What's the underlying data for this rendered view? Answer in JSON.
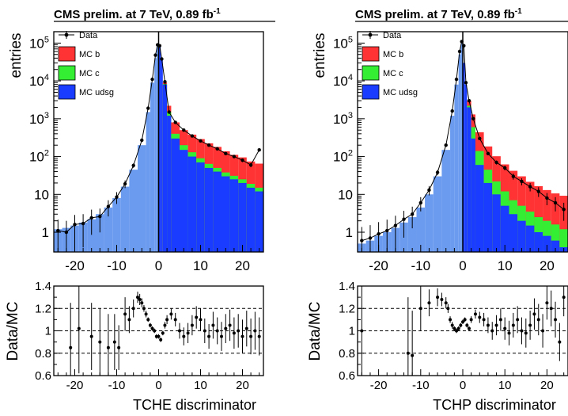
{
  "chart_data": [
    {
      "type": "histogram",
      "title": "CMS prelim. at 7 TeV, 0.89 fb",
      "title_sup": "-1",
      "xlabel": "TCHE discriminator",
      "ylabel": "entries",
      "ratio_ylabel": "Data/MC",
      "xlim": [
        -25,
        25
      ],
      "ylim_log": [
        0.3,
        200000
      ],
      "ratio_ylim": [
        0.6,
        1.4
      ],
      "x_ticks": [
        "-20",
        "-10",
        "0",
        "10",
        "20"
      ],
      "y_ticks": [
        {
          "base": "1",
          "exp": ""
        },
        {
          "base": "10",
          "exp": ""
        },
        {
          "base": "10",
          "exp": "2"
        },
        {
          "base": "10",
          "exp": "3"
        },
        {
          "base": "10",
          "exp": "4"
        },
        {
          "base": "10",
          "exp": "5"
        }
      ],
      "ratio_ticks": [
        "0.6",
        "0.8",
        "1",
        "1.2",
        "1.4"
      ],
      "legend": [
        {
          "label": "Data",
          "kind": "marker"
        },
        {
          "label": "MC b",
          "kind": "fill",
          "color": "#ff3333"
        },
        {
          "label": "MC c",
          "kind": "fill",
          "color": "#33ee33"
        },
        {
          "label": "MC udsg",
          "kind": "fill",
          "color": "#1a3cff"
        }
      ],
      "colors": {
        "negative_udsg": "#6b9bef",
        "udsg": "#1a3cff",
        "c": "#33ee33",
        "b": "#ff3333"
      },
      "bin_x": [
        -25,
        -23,
        -21,
        -19,
        -17,
        -15,
        -13,
        -11,
        -9,
        -7,
        -5,
        -3,
        -2,
        -1,
        -0.5,
        0,
        0.5,
        1,
        2,
        3,
        5,
        7,
        9,
        11,
        13,
        15,
        17,
        19,
        21,
        23,
        25
      ],
      "udsg": [
        1.2,
        1.3,
        1.5,
        1.8,
        2.2,
        3,
        4.5,
        8,
        16,
        45,
        200,
        1500,
        9000,
        40000,
        80000,
        80000,
        40000,
        8000,
        1200,
        300,
        150,
        100,
        70,
        50,
        40,
        30,
        25,
        20,
        15,
        12,
        10
      ],
      "c": [
        0,
        0,
        0,
        0,
        0,
        0,
        0,
        0,
        0,
        0,
        0,
        0,
        0,
        0,
        0,
        0,
        0,
        300,
        300,
        100,
        50,
        30,
        20,
        14,
        10,
        8,
        6,
        5,
        4,
        3,
        3
      ],
      "b": [
        0,
        0,
        0,
        0,
        0,
        0,
        0,
        0,
        0,
        0,
        0,
        0,
        0,
        0,
        0,
        0,
        0,
        700,
        700,
        400,
        300,
        250,
        200,
        160,
        130,
        100,
        80,
        70,
        55,
        50,
        140
      ],
      "data_x": [
        -24,
        -22,
        -20,
        -18,
        -16,
        -14,
        -12,
        -10,
        -8,
        -6,
        -4,
        -2.5,
        -1.5,
        -0.75,
        -0.25,
        0.25,
        0.75,
        1.5,
        2.5,
        4,
        6,
        8,
        10,
        12,
        14,
        16,
        18,
        20,
        22,
        24
      ],
      "data_y": [
        1.1,
        1.0,
        1.6,
        1.7,
        2.4,
        2.6,
        4.8,
        8.5,
        19,
        58,
        270,
        1900,
        11000,
        48000,
        90000,
        85000,
        38000,
        9500,
        1500,
        800,
        500,
        350,
        260,
        200,
        160,
        120,
        100,
        80,
        60,
        150
      ],
      "ratio_x": [
        -21,
        -19,
        -16,
        -14,
        -12,
        -10.5,
        -9.5,
        -8,
        -7,
        -6,
        -5,
        -4.5,
        -4,
        -3.5,
        -3,
        -2.5,
        -2,
        -1.5,
        -1,
        -0.5,
        0,
        0.5,
        1,
        1.5,
        2,
        3,
        4,
        5,
        6,
        7,
        8,
        9,
        10,
        11,
        12,
        13,
        14,
        15,
        16,
        17,
        18,
        19,
        20,
        21,
        22,
        23,
        24
      ],
      "ratio_y": [
        0.85,
        1.02,
        0.95,
        0.9,
        0.85,
        0.9,
        0.85,
        1.15,
        1.1,
        1.2,
        1.3,
        1.28,
        1.25,
        1.2,
        1.15,
        1.1,
        1.05,
        1.02,
        1.0,
        0.95,
        0.95,
        0.92,
        0.98,
        1.05,
        1.1,
        1.15,
        1.1,
        1.0,
        0.95,
        0.98,
        1.05,
        1.12,
        1.1,
        1.0,
        0.95,
        1.05,
        1.0,
        0.95,
        1.02,
        1.05,
        0.98,
        1.0,
        0.95,
        1.02,
        0.95,
        1.0,
        0.95
      ],
      "ratio_err": [
        0.4,
        0.4,
        0.3,
        0.3,
        0.3,
        0.25,
        0.2,
        0.15,
        0.12,
        0.08,
        0.05,
        0.05,
        0.04,
        0.03,
        0.03,
        0.02,
        0.02,
        0.02,
        0.02,
        0.02,
        0.02,
        0.02,
        0.02,
        0.03,
        0.04,
        0.05,
        0.06,
        0.07,
        0.08,
        0.09,
        0.09,
        0.1,
        0.1,
        0.11,
        0.11,
        0.12,
        0.12,
        0.13,
        0.13,
        0.14,
        0.14,
        0.15,
        0.15,
        0.16,
        0.16,
        0.17,
        0.17
      ]
    },
    {
      "type": "histogram",
      "title": "CMS prelim. at 7 TeV, 0.89 fb",
      "title_sup": "-1",
      "xlabel": "TCHP discriminator",
      "ylabel": "entries",
      "ratio_ylabel": "Data/MC",
      "xlim": [
        -25,
        25
      ],
      "ylim_log": [
        0.3,
        200000
      ],
      "ratio_ylim": [
        0.6,
        1.4
      ],
      "x_ticks": [
        "-20",
        "-10",
        "0",
        "10",
        "20"
      ],
      "y_ticks": [
        {
          "base": "1",
          "exp": ""
        },
        {
          "base": "10",
          "exp": ""
        },
        {
          "base": "10",
          "exp": "2"
        },
        {
          "base": "10",
          "exp": "3"
        },
        {
          "base": "10",
          "exp": "4"
        },
        {
          "base": "10",
          "exp": "5"
        }
      ],
      "ratio_ticks": [
        "0.6",
        "0.8",
        "1",
        "1.2",
        "1.4"
      ],
      "legend": [
        {
          "label": "Data",
          "kind": "marker"
        },
        {
          "label": "MC b",
          "kind": "fill",
          "color": "#ff3333"
        },
        {
          "label": "MC c",
          "kind": "fill",
          "color": "#33ee33"
        },
        {
          "label": "MC udsg",
          "kind": "fill",
          "color": "#1a3cff"
        }
      ],
      "colors": {
        "negative_udsg": "#6b9bef",
        "udsg": "#1a3cff",
        "c": "#33ee33",
        "b": "#ff3333"
      },
      "bin_x": [
        -25,
        -23,
        -21,
        -19,
        -17,
        -15,
        -13,
        -11,
        -9,
        -7,
        -5,
        -3,
        -2,
        -1,
        -0.5,
        0,
        0.5,
        1,
        2,
        3,
        5,
        7,
        9,
        11,
        13,
        15,
        17,
        19,
        21,
        23,
        25
      ],
      "udsg": [
        0.5,
        0.6,
        0.8,
        1.0,
        1.3,
        1.8,
        2.5,
        4.5,
        10,
        30,
        150,
        1200,
        8000,
        50000,
        100000,
        30000,
        8000,
        2000,
        300,
        60,
        20,
        10,
        5,
        3,
        2,
        1.5,
        1,
        0.8,
        0.6,
        0.4,
        0.3
      ],
      "c": [
        0,
        0,
        0,
        0,
        0,
        0,
        0,
        0,
        0,
        0,
        0,
        0,
        0,
        0,
        0,
        0,
        0,
        200,
        300,
        80,
        25,
        12,
        7,
        4,
        3,
        2,
        1.5,
        1.2,
        1.0,
        0.8,
        0.6
      ],
      "b": [
        0,
        0,
        0,
        0,
        0,
        0,
        0,
        0,
        0,
        0,
        0,
        0,
        0,
        0,
        0,
        0,
        0,
        800,
        700,
        300,
        140,
        80,
        50,
        35,
        25,
        18,
        14,
        11,
        9,
        8,
        20
      ],
      "data_x": [
        -24,
        -22,
        -20,
        -18,
        -16,
        -14,
        -12,
        -10,
        -8,
        -6,
        -4,
        -2.5,
        -1.5,
        -0.75,
        -0.25,
        0.25,
        0.75,
        1.5,
        2.5,
        4,
        6,
        8,
        10,
        12,
        14,
        16,
        18,
        20,
        22,
        24
      ],
      "data_y": [
        0.6,
        0.7,
        0.9,
        1.1,
        1.5,
        2.2,
        3.0,
        6.0,
        13,
        38,
        200,
        1600,
        11000,
        60000,
        110000,
        85000,
        9000,
        3000,
        1000,
        300,
        120,
        70,
        50,
        30,
        22,
        16,
        12,
        8,
        6,
        4
      ],
      "ratio_x": [
        -24,
        -13,
        -12,
        -10,
        -8,
        -6,
        -5,
        -4,
        -3.5,
        -3,
        -2.5,
        -2,
        -1.5,
        -1,
        -0.5,
        0,
        0.5,
        1,
        1.5,
        2,
        3,
        4,
        5,
        6,
        7,
        8,
        9,
        10,
        11,
        12,
        13,
        14,
        15,
        16,
        17,
        18,
        19,
        20,
        21,
        22,
        23,
        24
      ],
      "ratio_y": [
        1.0,
        0.8,
        0.78,
        1.2,
        1.25,
        1.3,
        1.28,
        1.25,
        1.2,
        1.1,
        1.05,
        1.02,
        1.0,
        1.02,
        1.05,
        1.08,
        1.1,
        1.05,
        1.02,
        1.1,
        1.15,
        1.12,
        1.1,
        1.05,
        1.0,
        1.05,
        1.1,
        1.02,
        0.98,
        1.05,
        1.1,
        1.0,
        0.98,
        1.05,
        1.15,
        1.1,
        1.0,
        1.25,
        1.2,
        1.1,
        0.9,
        1.3
      ],
      "ratio_err": [
        0.4,
        0.5,
        0.4,
        0.2,
        0.12,
        0.08,
        0.06,
        0.05,
        0.04,
        0.03,
        0.03,
        0.02,
        0.02,
        0.02,
        0.02,
        0.02,
        0.02,
        0.02,
        0.02,
        0.03,
        0.04,
        0.05,
        0.06,
        0.07,
        0.08,
        0.09,
        0.1,
        0.1,
        0.11,
        0.11,
        0.12,
        0.12,
        0.13,
        0.13,
        0.14,
        0.14,
        0.15,
        0.15,
        0.16,
        0.16,
        0.17,
        0.17
      ]
    }
  ]
}
